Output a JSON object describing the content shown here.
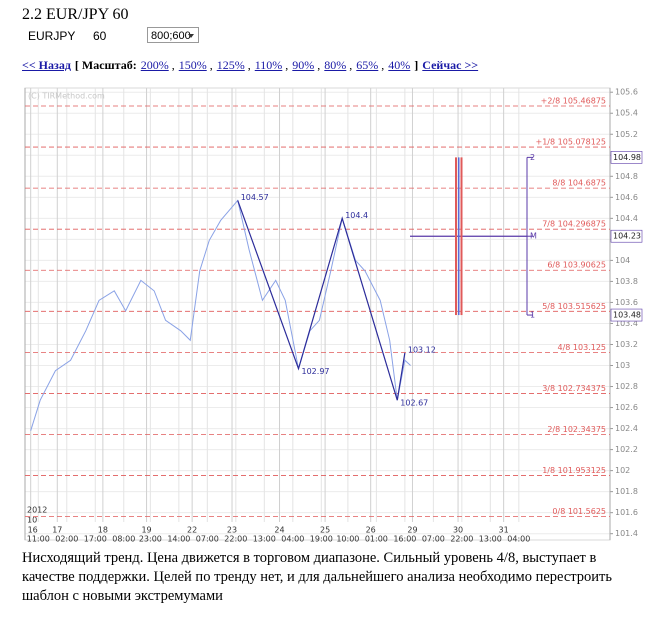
{
  "header": {
    "title": "2.2 EUR/JPY 60",
    "symbol": "EURJPY",
    "period": "60",
    "size_select": "800;600"
  },
  "nav": {
    "back": "<< Назад",
    "scale_label": "[ Масштаб:",
    "scales": [
      "200%",
      "150%",
      "125%",
      "110%",
      "90%",
      "80%",
      "65%",
      "40%"
    ],
    "separator": ",",
    "close": "]",
    "next": "Сейчас >>"
  },
  "chart_data": {
    "type": "line",
    "watermark": "(C) TIRMethod.com",
    "year_label": "2012",
    "month_label": "10",
    "xlim": [
      0,
      308
    ],
    "ylim": [
      101.34,
      105.64
    ],
    "yticks": [
      101.4,
      101.6,
      101.8,
      102,
      102.2,
      102.4,
      102.6,
      102.8,
      103,
      103.2,
      103.4,
      103.6,
      103.8,
      104,
      104.2,
      104.4,
      104.6,
      104.8,
      105,
      105.2,
      105.4,
      105.6
    ],
    "day_ticks": {
      "x": [
        3,
        17,
        41,
        64,
        88,
        109,
        134,
        158,
        182,
        204,
        228,
        252
      ],
      "labels": [
        "16",
        "17",
        "18",
        "19",
        "22",
        "23",
        "24",
        "25",
        "26",
        "29",
        "30",
        "31"
      ]
    },
    "time_ticks": {
      "x": [
        7,
        22,
        37,
        52,
        66,
        81,
        96,
        111,
        126,
        141,
        156,
        170,
        185,
        200,
        215,
        230,
        245,
        260
      ],
      "labels": [
        "11:00",
        "02:00",
        "17:00",
        "08:00",
        "23:00",
        "14:00",
        "07:00",
        "22:00",
        "13:00",
        "04:00",
        "19:00",
        "10:00",
        "01:00",
        "16:00",
        "07:00",
        "22:00",
        "13:00",
        "04:00"
      ]
    },
    "grid": true,
    "series": [
      {
        "name": "price",
        "color": "#8aa2e6",
        "x": [
          3,
          8,
          16,
          24,
          32,
          39,
          47,
          53,
          61,
          68,
          74,
          82,
          87,
          92,
          97,
          103,
          112,
          118,
          125,
          132,
          137,
          144,
          150,
          155,
          161,
          167,
          174,
          179,
          187,
          192,
          196,
          200,
          203
        ],
        "values": [
          102.38,
          102.67,
          102.95,
          103.05,
          103.33,
          103.62,
          103.71,
          103.52,
          103.81,
          103.71,
          103.43,
          103.33,
          103.24,
          103.9,
          104.19,
          104.38,
          104.57,
          104.1,
          103.62,
          103.81,
          103.62,
          102.97,
          103.33,
          103.43,
          103.9,
          104.4,
          104.0,
          103.9,
          103.62,
          103.24,
          102.67,
          103.05,
          103.0
        ]
      },
      {
        "name": "zigzag",
        "color": "#2c2c9a",
        "x": [
          112,
          144,
          167,
          196,
          200
        ],
        "values": [
          104.57,
          102.97,
          104.4,
          102.67,
          103.12
        ]
      }
    ],
    "murray_color": "#e05a5a",
    "murray_levels": [
      {
        "value": 105.46875,
        "label": "+2/8 105.46875"
      },
      {
        "value": 105.078125,
        "label": "+1/8 105.078125"
      },
      {
        "value": 104.6875,
        "label": "8/8 104.6875"
      },
      {
        "value": 104.296875,
        "label": "7/8 104.296875"
      },
      {
        "value": 103.90625,
        "label": "6/8 103.90625"
      },
      {
        "value": 103.515625,
        "label": "5/8 103.515625"
      },
      {
        "value": 103.125,
        "label": "4/8 103.125"
      },
      {
        "value": 102.734375,
        "label": "3/8 102.734375"
      },
      {
        "value": 102.34375,
        "label": "2/8 102.34375"
      },
      {
        "value": 101.953125,
        "label": "1/8 101.953125"
      },
      {
        "value": 101.5625,
        "label": "0/8 101.5625"
      }
    ],
    "target": {
      "color": "#5a3aa8",
      "levels": [
        {
          "label": "2",
          "value": 104.98
        },
        {
          "label": "M",
          "value": 104.23
        },
        {
          "label": "1",
          "value": 103.48
        }
      ]
    }
  },
  "caption": "Нисходящий тренд. Цена движется в торговом диапазоне. Сильный уровень 4/8, выступает в качестве поддержки. Целей по тренду нет, и для дальнейшего анализа необходимо перестроить шаблон с новыми экстремумами"
}
